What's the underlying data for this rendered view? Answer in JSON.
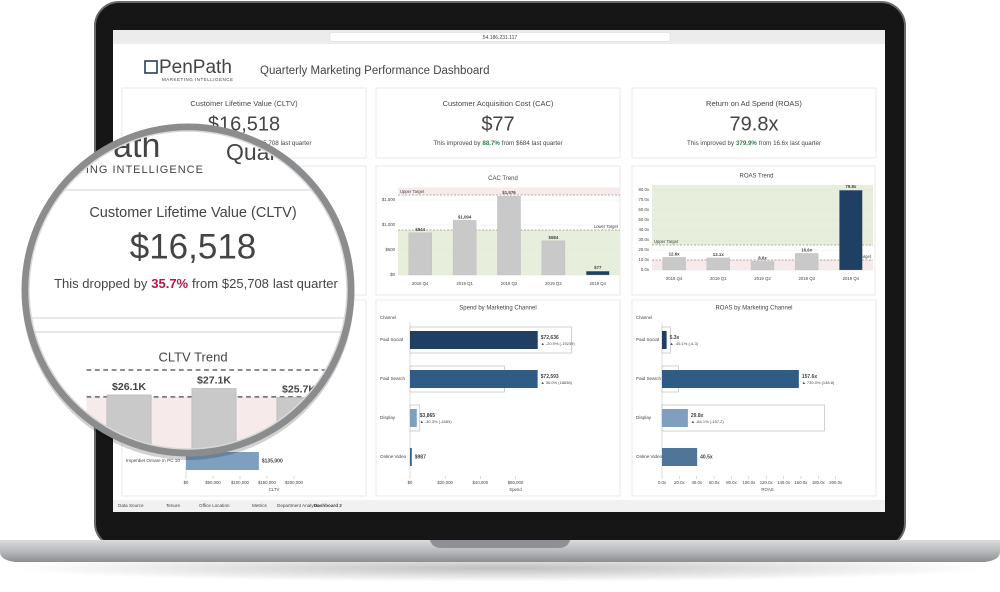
{
  "browser": {
    "url": "54.186.231.117"
  },
  "header": {
    "logo": "PenPath",
    "tagline": "MARKETING INTELLIGENCE",
    "title": "Quarterly Marketing Performance Dashboard"
  },
  "kpis": [
    {
      "title": "Customer Lifetime Value (CLTV)",
      "value": "$16,518",
      "text_before": "This dropped by",
      "change": "35.7%",
      "change_color": "#b5174b",
      "text_from": "from",
      "previous": "$25,708",
      "text_after": "last quarter"
    },
    {
      "title": "Customer Acquisition Cost (CAC)",
      "value": "$77",
      "text_before": "This improved by",
      "change": "88.7%",
      "change_color": "#2e7d4f",
      "text_from": "from",
      "previous": "$684",
      "text_after": "last quarter"
    },
    {
      "title": "Return on Ad Spend (ROAS)",
      "value": "79.8x",
      "text_before": "This improved by",
      "change": "379.9%",
      "change_color": "#2e7d4f",
      "text_from": "from",
      "previous": "16.6x",
      "text_after": "last quarter"
    }
  ],
  "trends": [
    {
      "title": "CLTV Trend",
      "values": [
        26100,
        27100,
        25700
      ],
      "value_labels": [
        "$26.1K",
        "$27.1K",
        "$25.7K"
      ],
      "colors": [
        "#c9c9c9",
        "#c9c9c9",
        "#c9c9c9"
      ],
      "ylim": [
        0,
        30000
      ],
      "targets": [
        {
          "value": 30000
        },
        {
          "value": 25800
        }
      ],
      "good_zone": "above"
    },
    {
      "title": "CAC Trend",
      "categories": [
        "2018 Q4",
        "2019 Q1",
        "2019 Q2",
        "2019 Q3",
        "2019 Q4"
      ],
      "values": [
        844,
        1094,
        1576,
        684,
        77
      ],
      "value_labels": [
        "$844",
        "$1,094",
        "$1,576",
        "$684",
        "$77"
      ],
      "colors": [
        "#c9c9c9",
        "#c9c9c9",
        "#c9c9c9",
        "#c9c9c9",
        "#1f3f63"
      ],
      "ylim": [
        0,
        1750
      ],
      "yticks": [
        {
          "value": 0,
          "label": "$0"
        },
        {
          "value": 500,
          "label": "$500"
        },
        {
          "value": 1000,
          "label": "$1,000"
        },
        {
          "value": 1500,
          "label": "$1,500"
        }
      ],
      "targets": [
        {
          "label": "Upper Target",
          "value": 1600
        },
        {
          "label": "Lower Target",
          "value": 900
        }
      ],
      "good_zone": "below"
    },
    {
      "title": "ROAS Trend",
      "categories": [
        "2018 Q4",
        "2019 Q1",
        "2019 Q2",
        "2019 Q3",
        "2019 Q4"
      ],
      "values": [
        12.6,
        12.1,
        8.6,
        16.6,
        79.8
      ],
      "value_labels": [
        "12.6x",
        "12.1x",
        "8.6x",
        "16.6x",
        "79.8x"
      ],
      "colors": [
        "#c9c9c9",
        "#c9c9c9",
        "#c9c9c9",
        "#c9c9c9",
        "#1f3f63"
      ],
      "ylim": [
        0,
        85
      ],
      "yticks": [
        {
          "value": 0,
          "label": "0.0x"
        },
        {
          "value": 10,
          "label": "10.0x"
        },
        {
          "value": 20,
          "label": "20.0x"
        },
        {
          "value": 30,
          "label": "30.0x"
        },
        {
          "value": 40,
          "label": "40.0x"
        },
        {
          "value": 50,
          "label": "50.0x"
        },
        {
          "value": 60,
          "label": "60.0x"
        },
        {
          "value": 70,
          "label": "70.0x"
        },
        {
          "value": 80,
          "label": "80.0x"
        }
      ],
      "targets": [
        {
          "label": "Upper Target",
          "value": 25
        },
        {
          "label": "Lower Target",
          "value": 10
        }
      ],
      "good_zone": "above"
    }
  ],
  "channels": [
    {
      "categories": [
        "Imperdiet Ornare In PC 10"
      ],
      "values": [
        135000
      ],
      "value_labels": [
        "$135,000"
      ],
      "colors": [
        "#7f9fc0"
      ],
      "xlim": [
        0,
        326000
      ],
      "xticks": [
        {
          "value": 0,
          "label": "$0"
        },
        {
          "value": 50000,
          "label": "$50,000"
        },
        {
          "value": 100000,
          "label": "$100,000"
        },
        {
          "value": 150000,
          "label": "$150,000"
        },
        {
          "value": 200000,
          "label": "$200,000"
        }
      ],
      "x_title": "CLTV"
    },
    {
      "title": "Spend by Marketing Channel",
      "axis_label": "Channel",
      "categories": [
        "Paid Social",
        "Paid Search",
        "Display",
        "Online Video"
      ],
      "values": [
        72636,
        72593,
        3865,
        987
      ],
      "value_labels": [
        "$72,636",
        "$72,593",
        "$3,865",
        "$987"
      ],
      "previous": [
        91875,
        53755,
        5548,
        null
      ],
      "change_labels": [
        "▲ -20.9% (-19239)",
        "▲ 35.0% (18838)",
        "▲ -30.3% (-1683)",
        null
      ],
      "colors": [
        "#1f3f63",
        "#2f5c85",
        "#7f9fc0",
        "#2f5c85"
      ],
      "xlim": [
        0,
        120000
      ],
      "xticks": [
        {
          "value": 0,
          "label": "$0"
        },
        {
          "value": 20000,
          "label": "$20,000"
        },
        {
          "value": 40000,
          "label": "$40,000"
        },
        {
          "value": 60000,
          "label": "$60,000"
        }
      ],
      "x_title": "Spend"
    },
    {
      "title": "ROAS by Marketing Channel",
      "axis_label": "Channel",
      "categories": [
        "Paid Social",
        "Paid Search",
        "Display",
        "Online Video"
      ],
      "values": [
        5.3,
        157.6,
        29.8,
        40.5
      ],
      "value_labels": [
        "5.3x",
        "157.6x",
        "29.8x",
        "40.5x"
      ],
      "previous": [
        9.6,
        18.8,
        187,
        null
      ],
      "change_labels": [
        "▲ -45.1% (-4.3)",
        "▲ 739.0% (138.8)",
        "▲ -84.1% (-157.2)",
        null
      ],
      "colors": [
        "#1f3f63",
        "#2f5c85",
        "#7f9fc0",
        "#4f7699"
      ],
      "xlim": [
        0,
        243
      ],
      "xticks": [
        {
          "value": 0,
          "label": "0.0x"
        },
        {
          "value": 20,
          "label": "20.0x"
        },
        {
          "value": 40,
          "label": "40.0x"
        },
        {
          "value": 60,
          "label": "60.0x"
        },
        {
          "value": 80,
          "label": "80.0x"
        },
        {
          "value": 100,
          "label": "100.0x"
        },
        {
          "value": 120,
          "label": "120.0x"
        },
        {
          "value": 140,
          "label": "140.0x"
        },
        {
          "value": 160,
          "label": "160.0x"
        },
        {
          "value": 180,
          "label": "180.0x"
        },
        {
          "value": 200,
          "label": "200.0x"
        }
      ],
      "x_title": "ROAS"
    }
  ],
  "tabs": [
    "Data Source",
    "Tenure",
    "Office Location",
    "Metrics",
    "Department Analysis",
    "Dashboard 2"
  ]
}
